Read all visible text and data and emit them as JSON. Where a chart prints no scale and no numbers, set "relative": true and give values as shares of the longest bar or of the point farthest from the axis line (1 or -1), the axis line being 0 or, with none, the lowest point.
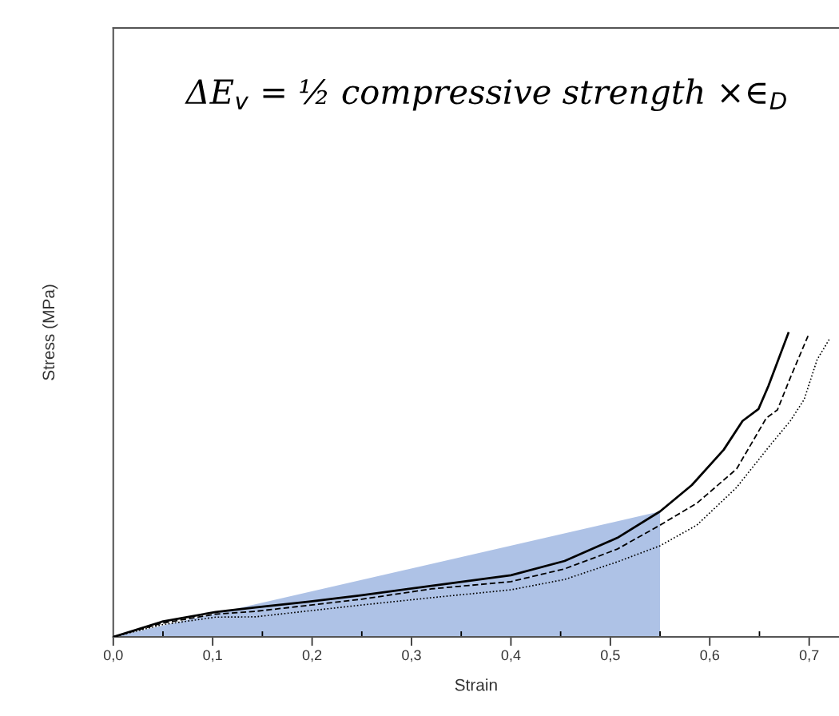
{
  "chart_data": {
    "type": "line",
    "relative": true,
    "xlabel": "Strain",
    "ylabel": "Stress (MPa)",
    "annotations": [
      "ΔE$_{v}$ = ½ compressive strength ×∈$_{D}$"
    ],
    "xlim": [
      0,
      0.73
    ],
    "xticks": [
      {
        "value": 0,
        "label": "0,0"
      },
      {
        "value": 0.05,
        "label": null
      },
      {
        "value": 0.1,
        "label": "0,1"
      },
      {
        "value": 0.15,
        "label": null
      },
      {
        "value": 0.2,
        "label": "0,2"
      },
      {
        "value": 0.25,
        "label": null
      },
      {
        "value": 0.3,
        "label": "0,3"
      },
      {
        "value": 0.35,
        "label": null
      },
      {
        "value": 0.4,
        "label": "0,4"
      },
      {
        "value": 0.45,
        "label": null
      },
      {
        "value": 0.5,
        "label": "0,5"
      },
      {
        "value": 0.55,
        "label": null
      },
      {
        "value": 0.6,
        "label": "0,6"
      },
      {
        "value": 0.65,
        "label": null
      },
      {
        "value": 0.7,
        "label": "0,7"
      }
    ],
    "series": [
      {
        "type": "area",
        "color": "#aec2e6",
        "x": [
          0,
          0.55
        ],
        "values": [
          0,
          0.413
        ]
      },
      {
        "color": "#000000",
        "line_style": "solid",
        "x": [
          0,
          0.049,
          0.103,
          0.143,
          0.197,
          0.25,
          0.32,
          0.4,
          0.454,
          0.507,
          0.55,
          0.582,
          0.614,
          0.633,
          0.649,
          0.659,
          0.679
        ],
        "values": [
          0,
          0.05,
          0.082,
          0.097,
          0.116,
          0.137,
          0.168,
          0.203,
          0.25,
          0.326,
          0.413,
          0.5,
          0.616,
          0.711,
          0.75,
          0.826,
          1.0
        ]
      },
      {
        "color": "#000000",
        "line_style": "dashed",
        "x": [
          0,
          0.049,
          0.103,
          0.143,
          0.25,
          0.32,
          0.4,
          0.454,
          0.507,
          0.55,
          0.587,
          0.627,
          0.657,
          0.668,
          0.681,
          0.7
        ],
        "values": [
          0,
          0.045,
          0.075,
          0.084,
          0.124,
          0.158,
          0.182,
          0.224,
          0.289,
          0.368,
          0.44,
          0.553,
          0.721,
          0.747,
          0.853,
          1.0
        ]
      },
      {
        "color": "#000000",
        "line_style": "dotted",
        "x": [
          0,
          0.049,
          0.103,
          0.143,
          0.25,
          0.32,
          0.4,
          0.454,
          0.507,
          0.55,
          0.587,
          0.627,
          0.659,
          0.681,
          0.695,
          0.708,
          0.721
        ],
        "values": [
          0,
          0.04,
          0.065,
          0.066,
          0.105,
          0.129,
          0.155,
          0.189,
          0.247,
          0.3,
          0.368,
          0.492,
          0.624,
          0.711,
          0.782,
          0.913,
          0.984
        ]
      }
    ]
  }
}
